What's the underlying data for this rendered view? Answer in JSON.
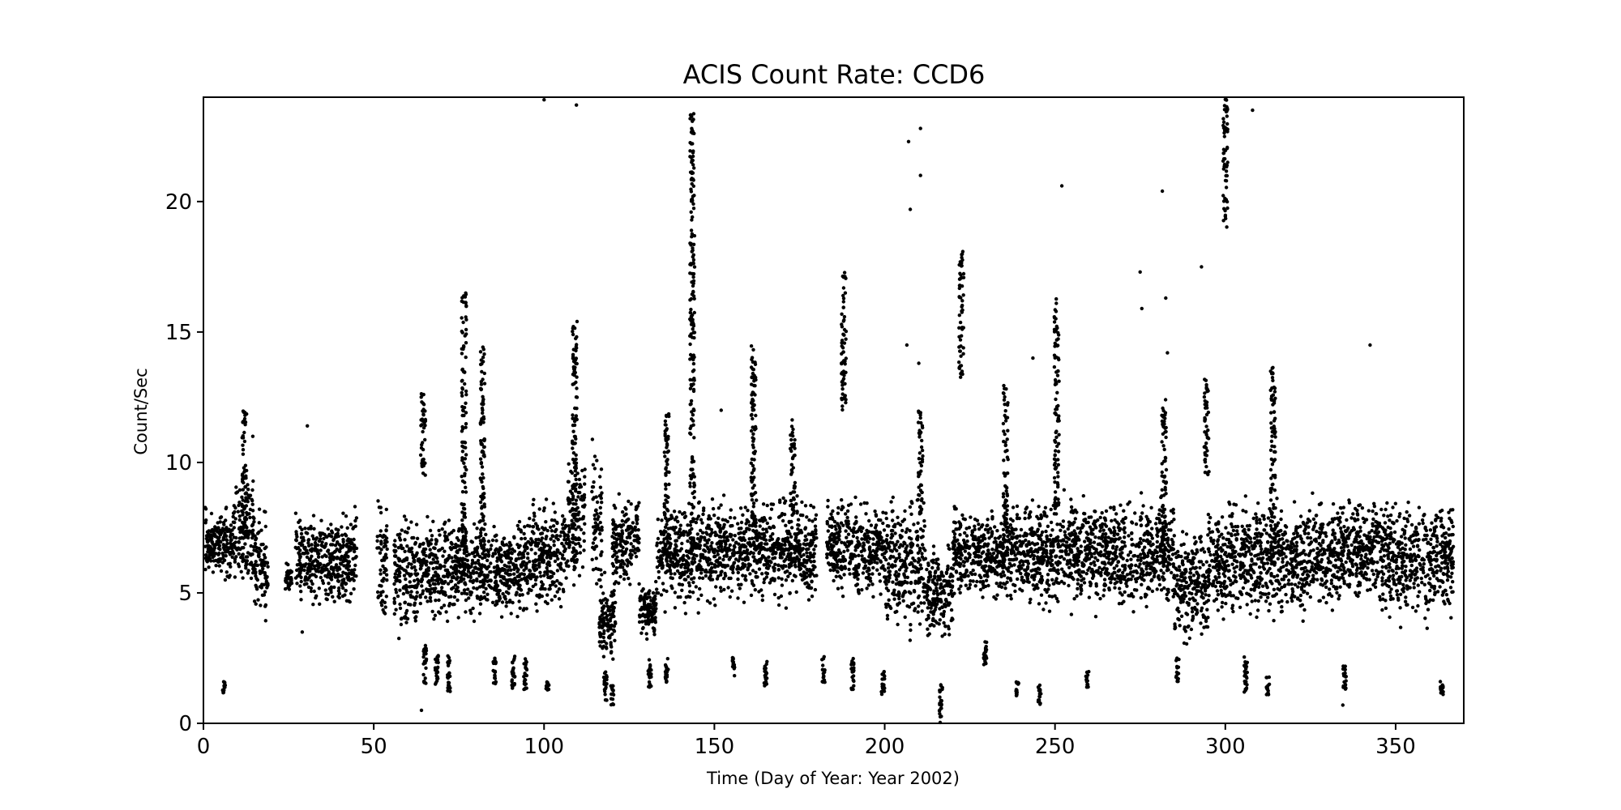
{
  "chart_data": {
    "type": "scatter",
    "title": "ACIS Count Rate: CCD6",
    "xlabel": "Time (Day of Year: Year 2002)",
    "ylabel": "Count/Sec",
    "xlim": [
      0,
      370
    ],
    "ylim": [
      0,
      24
    ],
    "xticks": [
      0,
      50,
      100,
      150,
      200,
      250,
      300,
      350
    ],
    "yticks": [
      0,
      5,
      10,
      15,
      20
    ],
    "marker_color": "#000000",
    "grid": false,
    "legend": "none",
    "baseline": {
      "x_range": [
        0,
        367
      ],
      "typical_min": 4,
      "typical_max": 8.5
    },
    "segments": [
      {
        "x": [
          0.5,
          9
        ],
        "y": [
          5.2,
          8.5
        ]
      },
      {
        "x": [
          9,
          15
        ],
        "y": [
          4.5,
          10.0
        ]
      },
      {
        "x": [
          15,
          19
        ],
        "y": [
          3.5,
          8.5
        ]
      },
      {
        "x": [
          24,
          26
        ],
        "y": [
          5.0,
          6.2
        ]
      },
      {
        "x": [
          27,
          45
        ],
        "y": [
          4.0,
          8.5
        ]
      },
      {
        "x": [
          51,
          54
        ],
        "y": [
          2.9,
          9.5
        ]
      },
      {
        "x": [
          56,
          65
        ],
        "y": [
          3.0,
          8.5
        ]
      },
      {
        "x": [
          65,
          80
        ],
        "y": [
          3.5,
          8.5
        ]
      },
      {
        "x": [
          80,
          95
        ],
        "y": [
          3.8,
          8.0
        ]
      },
      {
        "x": [
          95,
          107
        ],
        "y": [
          4.0,
          9.0
        ]
      },
      {
        "x": [
          107,
          112
        ],
        "y": [
          5.0,
          11.0
        ]
      },
      {
        "x": [
          114,
          117
        ],
        "y": [
          4.5,
          11.0
        ]
      },
      {
        "x": [
          116,
          121
        ],
        "y": [
          2.0,
          6.0
        ]
      },
      {
        "x": [
          120,
          128
        ],
        "y": [
          5.0,
          9.0
        ]
      },
      {
        "x": [
          128,
          133
        ],
        "y": [
          3.2,
          5.5
        ]
      },
      {
        "x": [
          133,
          145
        ],
        "y": [
          4.0,
          9.0
        ]
      },
      {
        "x": [
          145,
          180
        ],
        "y": [
          4.2,
          9.0
        ]
      },
      {
        "x": [
          183,
          200
        ],
        "y": [
          4.5,
          9.0
        ]
      },
      {
        "x": [
          200,
          212
        ],
        "y": [
          3.0,
          9.0
        ]
      },
      {
        "x": [
          212,
          220
        ],
        "y": [
          3.0,
          7.0
        ]
      },
      {
        "x": [
          220,
          235
        ],
        "y": [
          4.5,
          8.5
        ]
      },
      {
        "x": [
          235,
          260
        ],
        "y": [
          4.0,
          9.0
        ]
      },
      {
        "x": [
          260,
          285
        ],
        "y": [
          4.0,
          9.0
        ]
      },
      {
        "x": [
          285,
          295
        ],
        "y": [
          2.8,
          8.0
        ]
      },
      {
        "x": [
          295,
          325
        ],
        "y": [
          3.5,
          9.0
        ]
      },
      {
        "x": [
          325,
          345
        ],
        "y": [
          4.0,
          9.0
        ]
      },
      {
        "x": [
          345,
          367
        ],
        "y": [
          3.5,
          9.0
        ]
      }
    ],
    "flares": [
      {
        "x": 12,
        "y": [
          6.0,
          12.0
        ]
      },
      {
        "x": 64.5,
        "y": [
          9.5,
          12.8
        ]
      },
      {
        "x": 76.5,
        "y": [
          6.0,
          16.5
        ]
      },
      {
        "x": 82,
        "y": [
          6.0,
          14.6
        ]
      },
      {
        "x": 109,
        "y": [
          6.0,
          15.5
        ]
      },
      {
        "x": 136,
        "y": [
          6.0,
          12.0
        ]
      },
      {
        "x": 143.5,
        "y": [
          6.0,
          23.5
        ]
      },
      {
        "x": 161.5,
        "y": [
          6.0,
          14.5
        ]
      },
      {
        "x": 173,
        "y": [
          8.0,
          11.8
        ]
      },
      {
        "x": 188,
        "y": [
          12.0,
          17.3
        ]
      },
      {
        "x": 210.5,
        "y": [
          8.0,
          12.0
        ]
      },
      {
        "x": 222.5,
        "y": [
          13.2,
          18.1
        ]
      },
      {
        "x": 235.5,
        "y": [
          6.0,
          13.0
        ]
      },
      {
        "x": 250.5,
        "y": [
          8.0,
          16.3
        ]
      },
      {
        "x": 282,
        "y": [
          6.0,
          12.5
        ]
      },
      {
        "x": 294.5,
        "y": [
          9.5,
          13.2
        ]
      },
      {
        "x": 300,
        "y": [
          19.0,
          24.0
        ]
      },
      {
        "x": 314,
        "y": [
          6.0,
          13.7
        ]
      }
    ],
    "low_clusters": [
      {
        "x": 6,
        "y": [
          1.1,
          1.6
        ]
      },
      {
        "x": 65,
        "y": [
          1.5,
          3.0
        ]
      },
      {
        "x": 68.5,
        "y": [
          1.5,
          2.6
        ]
      },
      {
        "x": 72,
        "y": [
          1.2,
          2.6
        ]
      },
      {
        "x": 85.5,
        "y": [
          1.5,
          2.5
        ]
      },
      {
        "x": 91,
        "y": [
          1.3,
          2.7
        ]
      },
      {
        "x": 94.5,
        "y": [
          1.2,
          2.5
        ]
      },
      {
        "x": 101,
        "y": [
          1.2,
          1.6
        ]
      },
      {
        "x": 118,
        "y": [
          0.8,
          2.0
        ]
      },
      {
        "x": 120,
        "y": [
          0.7,
          1.5
        ]
      },
      {
        "x": 131,
        "y": [
          1.2,
          2.6
        ]
      },
      {
        "x": 136,
        "y": [
          1.5,
          2.5
        ]
      },
      {
        "x": 155.5,
        "y": [
          1.8,
          2.6
        ]
      },
      {
        "x": 165,
        "y": [
          1.4,
          2.4
        ]
      },
      {
        "x": 182,
        "y": [
          1.5,
          2.6
        ]
      },
      {
        "x": 190.5,
        "y": [
          1.3,
          2.5
        ]
      },
      {
        "x": 199.5,
        "y": [
          1.1,
          2.0
        ]
      },
      {
        "x": 216.5,
        "y": [
          0.0,
          1.5
        ]
      },
      {
        "x": 229.5,
        "y": [
          2.2,
          3.3
        ]
      },
      {
        "x": 239,
        "y": [
          0.9,
          1.6
        ]
      },
      {
        "x": 245.5,
        "y": [
          0.7,
          1.5
        ]
      },
      {
        "x": 259.5,
        "y": [
          1.3,
          2.0
        ]
      },
      {
        "x": 286,
        "y": [
          1.6,
          2.5
        ]
      },
      {
        "x": 306,
        "y": [
          1.2,
          2.6
        ]
      },
      {
        "x": 312.5,
        "y": [
          1.1,
          1.8
        ]
      },
      {
        "x": 335,
        "y": [
          1.3,
          2.2
        ]
      },
      {
        "x": 363.5,
        "y": [
          1.1,
          1.6
        ]
      }
    ],
    "outliers": [
      {
        "x": 100,
        "y": 23.9
      },
      {
        "x": 109.5,
        "y": 23.7
      },
      {
        "x": 207,
        "y": 22.3
      },
      {
        "x": 207.5,
        "y": 19.7
      },
      {
        "x": 210.5,
        "y": 22.8
      },
      {
        "x": 210.5,
        "y": 21.0
      },
      {
        "x": 252,
        "y": 20.6
      },
      {
        "x": 281.5,
        "y": 20.4
      },
      {
        "x": 308,
        "y": 23.5
      },
      {
        "x": 293,
        "y": 17.5
      },
      {
        "x": 275,
        "y": 17.3
      },
      {
        "x": 282.5,
        "y": 16.3
      },
      {
        "x": 342.5,
        "y": 14.5
      },
      {
        "x": 206.5,
        "y": 14.5
      },
      {
        "x": 30.5,
        "y": 11.4
      },
      {
        "x": 64,
        "y": 0.5
      },
      {
        "x": 334.5,
        "y": 0.7
      },
      {
        "x": 29,
        "y": 3.5
      },
      {
        "x": 152,
        "y": 12.0
      },
      {
        "x": 14.5,
        "y": 11.0
      },
      {
        "x": 210,
        "y": 13.8
      },
      {
        "x": 275.5,
        "y": 15.9
      },
      {
        "x": 283,
        "y": 14.2
      },
      {
        "x": 243.5,
        "y": 14.0
      }
    ]
  }
}
